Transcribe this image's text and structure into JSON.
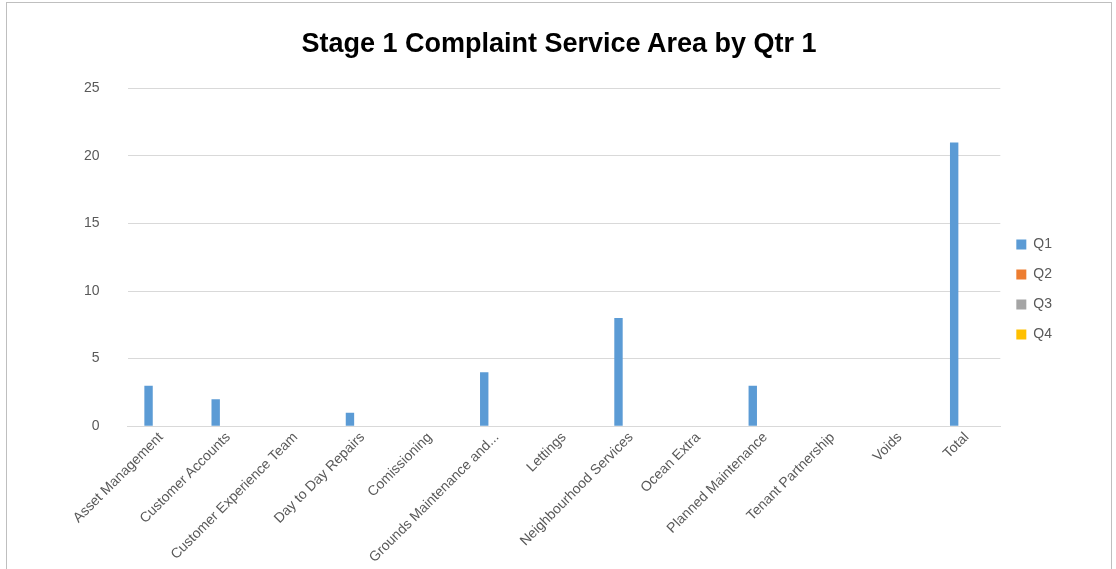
{
  "chart_data": {
    "type": "bar",
    "title": "Stage 1 Complaint Service Area by Qtr 1",
    "categories": [
      "Asset Management",
      "Customer Accounts",
      "Customer Experience Team",
      "Day to Day Repairs",
      "Comissioning",
      "Grounds Maintenance and...",
      "Lettings",
      "Neighbourhood Services",
      "Ocean Extra",
      "Planned Maintenance",
      "Tenant Partnership",
      "Voids",
      "Total"
    ],
    "series": [
      {
        "name": "Q1",
        "color": "#5b9bd5",
        "values": [
          3,
          2,
          null,
          1,
          null,
          4,
          null,
          8,
          null,
          3,
          null,
          null,
          21
        ]
      },
      {
        "name": "Q2",
        "color": "#ed7d31",
        "values": [
          null,
          null,
          null,
          null,
          null,
          null,
          null,
          null,
          null,
          null,
          null,
          null,
          null
        ]
      },
      {
        "name": "Q3",
        "color": "#a5a5a5",
        "values": [
          null,
          null,
          null,
          null,
          null,
          null,
          null,
          null,
          null,
          null,
          null,
          null,
          null
        ]
      },
      {
        "name": "Q4",
        "color": "#ffc000",
        "values": [
          null,
          null,
          null,
          null,
          null,
          null,
          null,
          null,
          null,
          null,
          null,
          null,
          null
        ]
      }
    ],
    "ylim": [
      0,
      25
    ],
    "yticks": [
      0,
      5,
      10,
      15,
      20,
      25
    ],
    "grid": "y",
    "legend": "right"
  }
}
